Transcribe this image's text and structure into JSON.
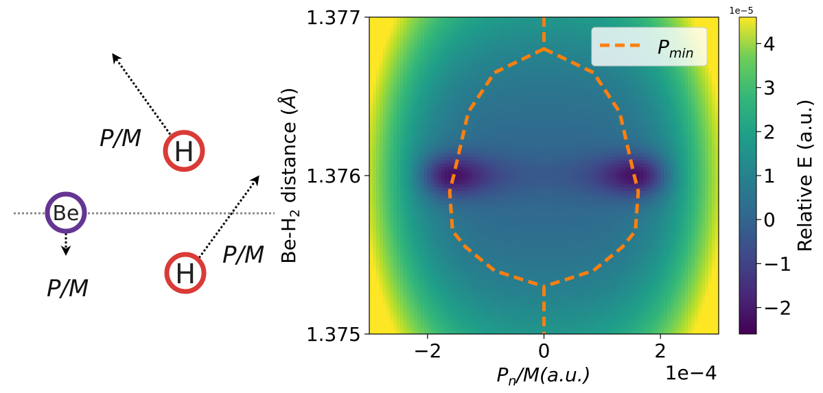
{
  "diagram": {
    "atoms": [
      {
        "id": "be",
        "label": "Be",
        "color": "#653592"
      },
      {
        "id": "h_top",
        "label": "H",
        "color": "#d93b36"
      },
      {
        "id": "h_bottom",
        "label": "H",
        "color": "#d93b36"
      }
    ],
    "arrow_label": "P/M"
  },
  "chart_data": {
    "type": "heatmap",
    "colormap": "viridis",
    "xlabel": "P_n/M(a.u.)",
    "ylabel": "Be-H₂ distance (Å)",
    "x_scale_note": "1e−4",
    "xlim": [
      -3,
      3
    ],
    "ylim": [
      1.375,
      1.377
    ],
    "x_ticks": [
      -2,
      0,
      2
    ],
    "x_tick_labels": [
      "−2",
      "0",
      "2"
    ],
    "y_ticks": [
      1.375,
      1.376,
      1.377
    ],
    "y_tick_labels": [
      "1.375",
      "1.376",
      "1.377"
    ],
    "colorbar": {
      "label": "Relative E (a.u.)",
      "scale_note": "1e−5",
      "range": [
        -2.6,
        4.6
      ],
      "ticks": [
        -2,
        -1,
        0,
        1,
        2,
        3,
        4
      ],
      "tick_labels": [
        "−2",
        "−1",
        "0",
        "1",
        "2",
        "3",
        "4"
      ]
    },
    "legend": {
      "position": "top-right",
      "entries": [
        {
          "label": "P_min",
          "color": "#ff7f0e",
          "style": "dashed"
        }
      ]
    },
    "series": [
      {
        "name": "P_min",
        "color": "#ff7f0e",
        "segments": [
          [
            [
              0,
              1.377
            ],
            [
              0,
              1.3768
            ]
          ],
          [
            [
              0,
              1.3768
            ],
            [
              -0.85,
              1.37665
            ],
            [
              -1.3,
              1.3764
            ],
            [
              -1.55,
              1.376
            ],
            [
              -1.62,
              1.3759
            ],
            [
              -1.6,
              1.3758
            ],
            [
              -1.57,
              1.37565
            ],
            [
              -1.35,
              1.37555
            ],
            [
              -0.85,
              1.3754
            ],
            [
              0,
              1.3753
            ]
          ],
          [
            [
              0,
              1.3768
            ],
            [
              0.85,
              1.37665
            ],
            [
              1.3,
              1.3764
            ],
            [
              1.55,
              1.376
            ],
            [
              1.62,
              1.3759
            ],
            [
              1.6,
              1.3758
            ],
            [
              1.57,
              1.37565
            ],
            [
              1.35,
              1.37555
            ],
            [
              0.85,
              1.3754
            ],
            [
              0,
              1.3753
            ]
          ],
          [
            [
              0,
              1.3753
            ],
            [
              0,
              1.375
            ]
          ]
        ]
      }
    ]
  }
}
